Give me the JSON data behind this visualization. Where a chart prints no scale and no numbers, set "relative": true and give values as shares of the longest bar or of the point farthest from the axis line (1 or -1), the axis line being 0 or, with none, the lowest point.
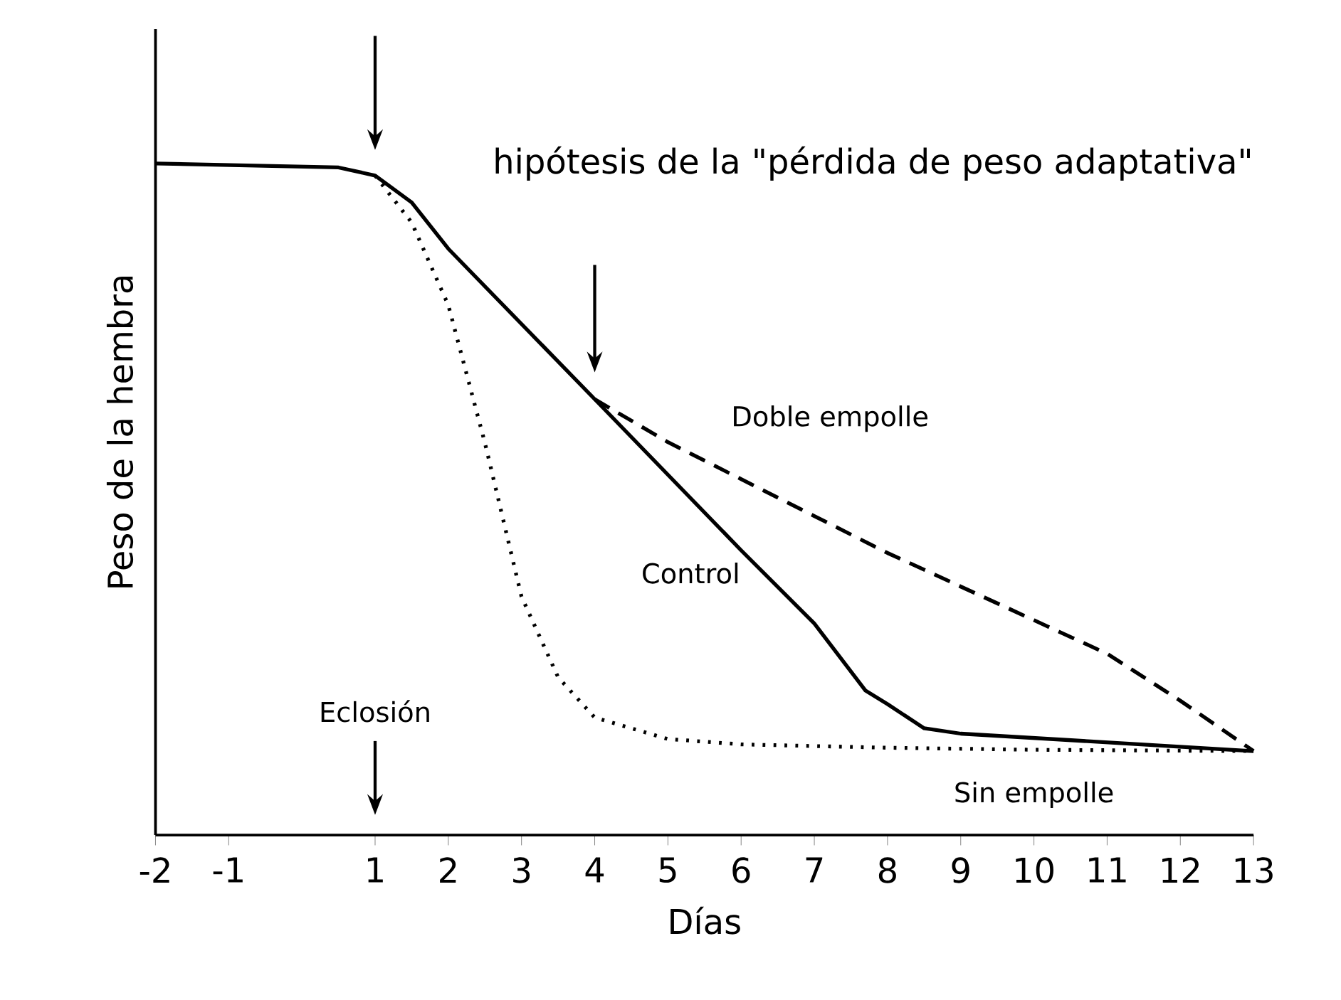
{
  "chart_data": {
    "type": "line",
    "relative": true,
    "title": "hipótesis de la \"pérdida de peso adaptativa\"",
    "xlabel": "Días",
    "ylabel": "Peso de la hembra",
    "xlim": [
      -2,
      13
    ],
    "xticks": [
      -2,
      -1,
      1,
      2,
      3,
      4,
      5,
      6,
      7,
      8,
      9,
      10,
      11,
      12,
      13
    ],
    "grid": false,
    "marker": "none",
    "annotations": [
      {
        "text": "Eclosión",
        "x": 1
      }
    ],
    "series": [
      {
        "name": "Control",
        "color": "#000000",
        "line_style": "solid",
        "x": [
          -2,
          0.5,
          1,
          1.5,
          2,
          4,
          6,
          7,
          7.7,
          8,
          8.5,
          9,
          13
        ],
        "values": [
          1.0,
          0.994,
          0.982,
          0.942,
          0.873,
          0.649,
          0.424,
          0.315,
          0.215,
          0.195,
          0.159,
          0.151,
          0.125
        ]
      },
      {
        "name": "Doble empolle",
        "color": "#000000",
        "line_style": "dashed",
        "x": [
          4,
          5,
          6,
          7,
          8,
          9,
          10,
          11,
          12,
          13
        ],
        "values": [
          0.649,
          0.585,
          0.53,
          0.475,
          0.42,
          0.37,
          0.32,
          0.27,
          0.2,
          0.125
        ]
      },
      {
        "name": "Sin empolle",
        "color": "#000000",
        "line_style": "dotted",
        "x": [
          1,
          1.5,
          2,
          2.5,
          3,
          3.5,
          4,
          5,
          6,
          8,
          10,
          13
        ],
        "values": [
          0.982,
          0.912,
          0.789,
          0.584,
          0.355,
          0.235,
          0.175,
          0.143,
          0.135,
          0.13,
          0.127,
          0.125
        ]
      }
    ]
  }
}
